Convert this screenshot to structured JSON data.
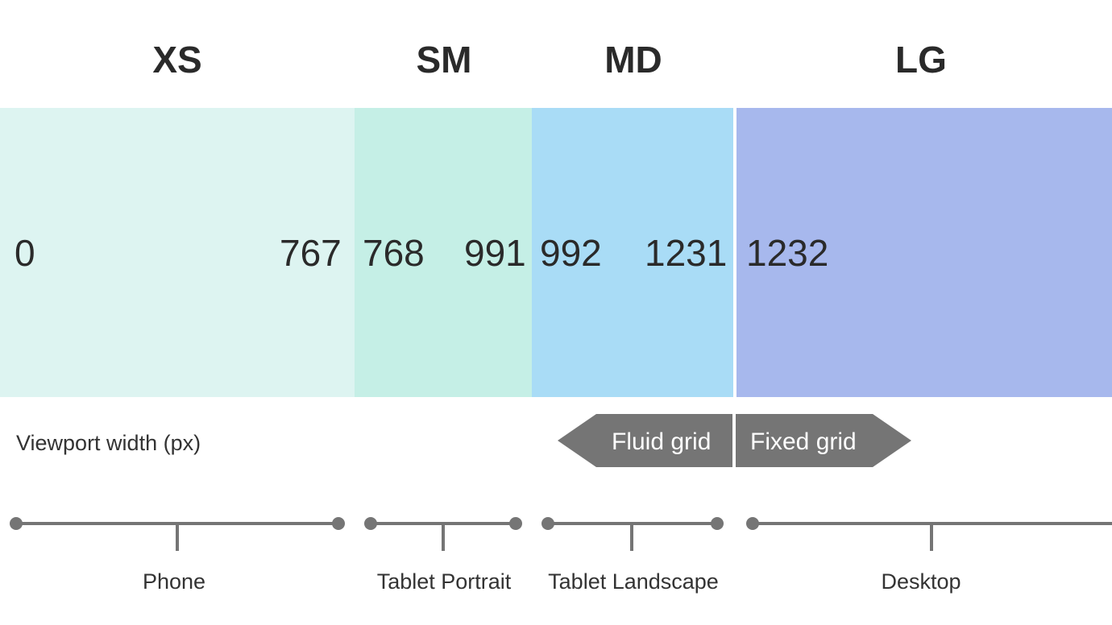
{
  "breakpoints": [
    {
      "key": "xs",
      "label": "XS",
      "min": "0",
      "max": "767",
      "device": "Phone",
      "color": "#ddf4f1"
    },
    {
      "key": "sm",
      "label": "SM",
      "min": "768",
      "max": "991",
      "device": "Tablet Portrait",
      "color": "#c5efe6"
    },
    {
      "key": "md",
      "label": "MD",
      "min": "992",
      "max": "1231",
      "device": "Tablet Landscape",
      "color": "#a9dcf6"
    },
    {
      "key": "lg",
      "label": "LG",
      "min": "1232",
      "max": "",
      "device": "Desktop",
      "color": "#a7b8ed"
    }
  ],
  "caption": "Viewport width (px)",
  "grid": {
    "fluid_label": "Fluid grid",
    "fixed_label": "Fixed grid",
    "arrow_color": "#757575"
  }
}
